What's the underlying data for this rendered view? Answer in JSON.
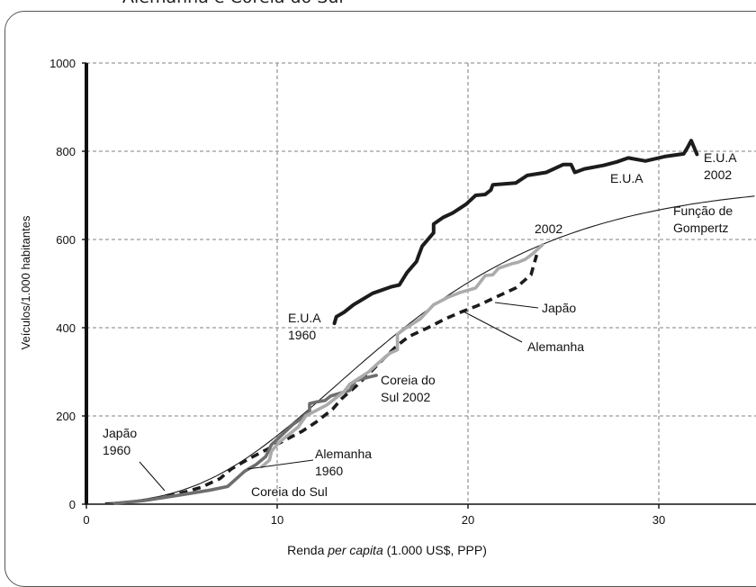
{
  "header": {
    "cut_title": "Alemanha e Coreia do Sul"
  },
  "chart_data": {
    "type": "line",
    "xlabel_prefix": "Renda ",
    "xlabel_italic": "per capita",
    "xlabel_suffix": " (1.000 US$, PPP)",
    "ylabel": "Veículos/1.000 habitantes",
    "xlim": [
      0,
      35
    ],
    "ylim": [
      0,
      1000
    ],
    "x_ticks": [
      "0",
      "10",
      "20",
      "30"
    ],
    "y_ticks": [
      "0",
      "200",
      "400",
      "600",
      "800",
      "1000"
    ],
    "grid": true,
    "series": [
      {
        "name": "E.U.A",
        "style": "thick-black",
        "color": "#1c1c1c",
        "points": [
          [
            13.0,
            410
          ],
          [
            13.1,
            425
          ],
          [
            13.5,
            435
          ],
          [
            14,
            452
          ],
          [
            15,
            478
          ],
          [
            16,
            493
          ],
          [
            16.4,
            497
          ],
          [
            16.8,
            525
          ],
          [
            17.3,
            550
          ],
          [
            17.4,
            562
          ],
          [
            17.6,
            585
          ],
          [
            18.2,
            615
          ],
          [
            18.2,
            635
          ],
          [
            18.7,
            650
          ],
          [
            19.2,
            660
          ],
          [
            19.9,
            680
          ],
          [
            20.4,
            700
          ],
          [
            20.9,
            702
          ],
          [
            21.2,
            712
          ],
          [
            21.3,
            724
          ],
          [
            22.5,
            728
          ],
          [
            23.1,
            745
          ],
          [
            24.1,
            752
          ],
          [
            25,
            770
          ],
          [
            25.4,
            770
          ],
          [
            25.6,
            752
          ],
          [
            26.1,
            760
          ],
          [
            27.1,
            768
          ],
          [
            27.8,
            776
          ],
          [
            28.4,
            785
          ],
          [
            29.3,
            778
          ],
          [
            30.3,
            788
          ],
          [
            31.3,
            794
          ],
          [
            31.5,
            808
          ],
          [
            31.7,
            824
          ],
          [
            32.0,
            793
          ]
        ]
      },
      {
        "name": "Japão",
        "style": "thick-lightgray",
        "color": "#ababab",
        "points": [
          [
            9.2,
            85
          ],
          [
            9.6,
            100
          ],
          [
            9.7,
            120
          ],
          [
            10.1,
            140
          ],
          [
            11.1,
            175
          ],
          [
            11.5,
            200
          ],
          [
            12.6,
            225
          ],
          [
            13.5,
            255
          ],
          [
            13.8,
            272
          ],
          [
            14.8,
            300
          ],
          [
            15.3,
            320
          ],
          [
            15.9,
            342
          ],
          [
            16.3,
            350
          ],
          [
            16.3,
            385
          ],
          [
            16.7,
            398
          ],
          [
            17.5,
            420
          ],
          [
            18.2,
            452
          ],
          [
            19,
            470
          ],
          [
            19.6,
            480
          ],
          [
            20.4,
            490
          ],
          [
            20.9,
            518
          ],
          [
            21.3,
            520
          ],
          [
            21.6,
            535
          ],
          [
            22.3,
            545
          ],
          [
            22.6,
            548
          ],
          [
            23,
            555
          ],
          [
            23.4,
            568
          ],
          [
            23.9,
            588
          ]
        ]
      },
      {
        "name": "Alemanha",
        "style": "dashed-black",
        "color": "#1c1c1c",
        "points": [
          [
            4.2,
            18
          ],
          [
            5.2,
            28
          ],
          [
            6,
            38
          ],
          [
            7,
            58
          ],
          [
            7.6,
            80
          ],
          [
            8.6,
            105
          ],
          [
            9.5,
            125
          ],
          [
            10.4,
            145
          ],
          [
            11.3,
            165
          ],
          [
            12,
            185
          ],
          [
            12.9,
            215
          ],
          [
            13.4,
            240
          ],
          [
            14.2,
            270
          ],
          [
            14.9,
            300
          ],
          [
            15.7,
            335
          ],
          [
            16.3,
            360
          ],
          [
            16.9,
            380
          ],
          [
            17.9,
            400
          ],
          [
            18.8,
            420
          ],
          [
            19.6,
            435
          ],
          [
            20.5,
            450
          ],
          [
            21.5,
            470
          ],
          [
            22.5,
            490
          ],
          [
            23.3,
            520
          ],
          [
            23.6,
            565
          ]
        ]
      },
      {
        "name": "Coreia do Sul",
        "style": "thick-darkgray",
        "color": "#6e6e6e",
        "points": [
          [
            1.5,
            2
          ],
          [
            3,
            8
          ],
          [
            4.5,
            18
          ],
          [
            5.5,
            25
          ],
          [
            6.5,
            32
          ],
          [
            7.4,
            40
          ],
          [
            8.3,
            75
          ],
          [
            8.9,
            90
          ],
          [
            9.4,
            108
          ],
          [
            9.7,
            135
          ],
          [
            10.2,
            155
          ],
          [
            10.8,
            180
          ],
          [
            11.3,
            195
          ],
          [
            11.7,
            210
          ],
          [
            11.7,
            228
          ],
          [
            12.1,
            232
          ],
          [
            12.5,
            235
          ],
          [
            12.8,
            245
          ],
          [
            13.8,
            258
          ],
          [
            14.1,
            280
          ],
          [
            14.8,
            288
          ],
          [
            15.2,
            292
          ]
        ]
      },
      {
        "name": "Função de Gompertz",
        "style": "thin-black",
        "color": "#1c1c1c",
        "gompertz": {
          "max": 730,
          "b": 6.4,
          "c": 0.142,
          "x0": 1.0,
          "x1": 35
        }
      }
    ],
    "annotations": {
      "usa_2002": [
        "E.U.A",
        "2002"
      ],
      "usa_label": "E.U.A",
      "gompertz": [
        "Função de",
        "Gompertz"
      ],
      "label_2002": "2002",
      "usa_1960": [
        "E.U.A",
        "1960"
      ],
      "japao": "Japão",
      "alemanha": "Alemanha",
      "coreia_2002": [
        "Coreia do",
        "Sul 2002"
      ],
      "japao_1960": [
        "Japão",
        "1960"
      ],
      "alemanha_1960": [
        "Alemanha",
        "1960"
      ],
      "coreia_sul": "Coreia do Sul"
    }
  }
}
